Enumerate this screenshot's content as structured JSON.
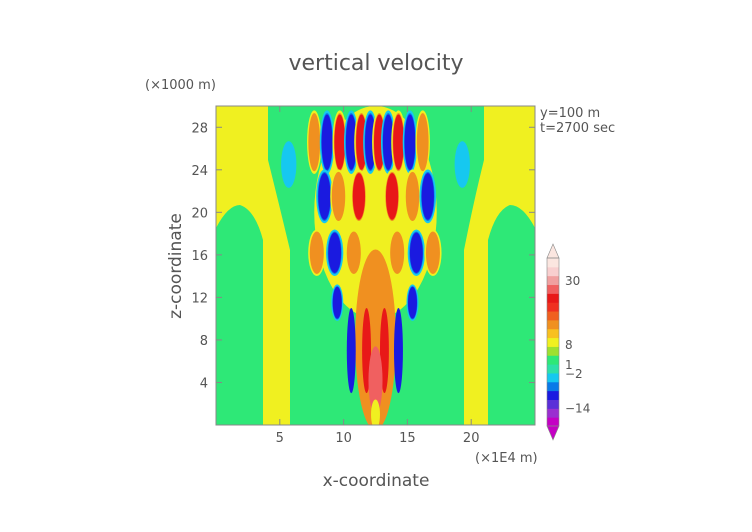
{
  "chart_data": {
    "type": "heatmap",
    "title": "vertical velocity",
    "xlabel": "x-coordinate",
    "ylabel": "z-coordinate",
    "x_unit": "(×1E4 m)",
    "y_unit": "(×1000 m)",
    "annotations": [
      "y=100 m",
      "t=2700 sec"
    ],
    "xlim": [
      0,
      25
    ],
    "ylim": [
      0,
      30
    ],
    "x_ticks": [
      5,
      10,
      15,
      20
    ],
    "y_ticks": [
      4,
      8,
      12,
      16,
      20,
      24,
      28
    ],
    "colorbar": {
      "labels": [
        "30",
        "8",
        "1",
        "−2",
        "−14"
      ],
      "label_values": [
        30,
        8,
        1,
        -2,
        -14
      ],
      "range": [
        -20,
        38
      ],
      "colors": [
        "#c400c4",
        "#9a2fd0",
        "#5a2fd8",
        "#1a1ae0",
        "#0a7ae8",
        "#16c8f0",
        "#2de0a8",
        "#2ee877",
        "#9de030",
        "#f0f020",
        "#f8c020",
        "#f09020",
        "#f06020",
        "#f03020",
        "#e81818",
        "#f06060",
        "#f0a0a0",
        "#f8cfcf",
        "#fbe6e0"
      ]
    },
    "background_level": "near zero (green)"
  }
}
